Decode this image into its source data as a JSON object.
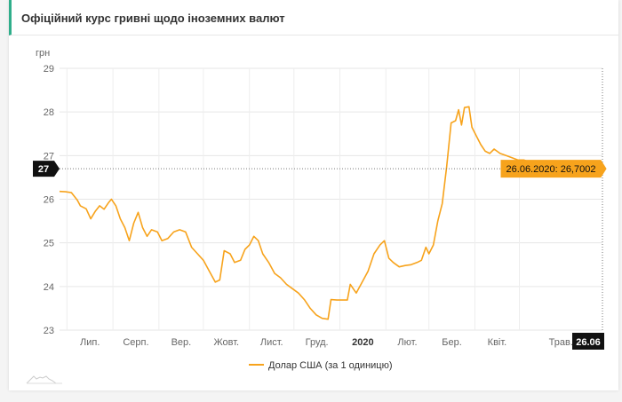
{
  "header": {
    "title": "Офіційний курс гривні щодо іноземних валют"
  },
  "chart_data": {
    "type": "line",
    "ylabel": "грн",
    "ylim": [
      23,
      29
    ],
    "yticks": [
      23,
      24,
      25,
      26,
      27,
      28,
      29
    ],
    "x_range": [
      "2019-06-26",
      "2020-06-26"
    ],
    "x_ticks": [
      {
        "label": "Лип.",
        "date": "2019-07-01",
        "bold": false
      },
      {
        "label": "Серп.",
        "date": "2019-08-01",
        "bold": false
      },
      {
        "label": "Вер.",
        "date": "2019-09-01",
        "bold": false
      },
      {
        "label": "Жовт.",
        "date": "2019-10-01",
        "bold": false
      },
      {
        "label": "Лист.",
        "date": "2019-11-01",
        "bold": false
      },
      {
        "label": "Груд.",
        "date": "2019-12-01",
        "bold": false
      },
      {
        "label": "2020",
        "date": "2020-01-01",
        "bold": true
      },
      {
        "label": "Лют.",
        "date": "2020-02-01",
        "bold": false
      },
      {
        "label": "Бер.",
        "date": "2020-03-01",
        "bold": false
      },
      {
        "label": "Квіт.",
        "date": "2020-04-01",
        "bold": false
      },
      {
        "label": "Трав.",
        "date": "2020-05-01",
        "bold": false
      }
    ],
    "grid": true,
    "legend_position": "bottom",
    "series": [
      {
        "name": "Долар США (за 1 одиницю)",
        "color": "#f7a31c",
        "points": [
          [
            "2019-06-26",
            26.18
          ],
          [
            "2019-06-30",
            26.17
          ],
          [
            "2019-07-04",
            26.15
          ],
          [
            "2019-07-08",
            25.98
          ],
          [
            "2019-07-10",
            25.85
          ],
          [
            "2019-07-14",
            25.78
          ],
          [
            "2019-07-17",
            25.55
          ],
          [
            "2019-07-20",
            25.72
          ],
          [
            "2019-07-23",
            25.85
          ],
          [
            "2019-07-26",
            25.77
          ],
          [
            "2019-07-29",
            25.92
          ],
          [
            "2019-07-31",
            26.0
          ],
          [
            "2019-08-03",
            25.85
          ],
          [
            "2019-08-06",
            25.55
          ],
          [
            "2019-08-09",
            25.35
          ],
          [
            "2019-08-12",
            25.05
          ],
          [
            "2019-08-15",
            25.45
          ],
          [
            "2019-08-18",
            25.7
          ],
          [
            "2019-08-21",
            25.35
          ],
          [
            "2019-08-24",
            25.15
          ],
          [
            "2019-08-27",
            25.3
          ],
          [
            "2019-08-31",
            25.25
          ],
          [
            "2019-09-03",
            25.05
          ],
          [
            "2019-09-07",
            25.1
          ],
          [
            "2019-09-11",
            25.25
          ],
          [
            "2019-09-15",
            25.3
          ],
          [
            "2019-09-19",
            25.25
          ],
          [
            "2019-09-23",
            24.9
          ],
          [
            "2019-09-27",
            24.75
          ],
          [
            "2019-10-01",
            24.6
          ],
          [
            "2019-10-05",
            24.35
          ],
          [
            "2019-10-09",
            24.1
          ],
          [
            "2019-10-12",
            24.15
          ],
          [
            "2019-10-15",
            24.82
          ],
          [
            "2019-10-19",
            24.75
          ],
          [
            "2019-10-22",
            24.55
          ],
          [
            "2019-10-26",
            24.6
          ],
          [
            "2019-10-29",
            24.85
          ],
          [
            "2019-11-01",
            24.95
          ],
          [
            "2019-11-04",
            25.15
          ],
          [
            "2019-11-07",
            25.05
          ],
          [
            "2019-11-10",
            24.75
          ],
          [
            "2019-11-14",
            24.55
          ],
          [
            "2019-11-18",
            24.3
          ],
          [
            "2019-11-22",
            24.2
          ],
          [
            "2019-11-26",
            24.05
          ],
          [
            "2019-11-30",
            23.95
          ],
          [
            "2019-12-04",
            23.85
          ],
          [
            "2019-12-08",
            23.7
          ],
          [
            "2019-12-12",
            23.5
          ],
          [
            "2019-12-16",
            23.35
          ],
          [
            "2019-12-20",
            23.27
          ],
          [
            "2019-12-24",
            23.25
          ],
          [
            "2019-12-26",
            23.7
          ],
          [
            "2019-12-30",
            23.69
          ],
          [
            "2020-01-03",
            23.69
          ],
          [
            "2020-01-06",
            23.69
          ],
          [
            "2020-01-08",
            24.05
          ],
          [
            "2020-01-12",
            23.85
          ],
          [
            "2020-01-16",
            24.1
          ],
          [
            "2020-01-20",
            24.35
          ],
          [
            "2020-01-24",
            24.75
          ],
          [
            "2020-01-28",
            24.95
          ],
          [
            "2020-01-31",
            25.05
          ],
          [
            "2020-02-03",
            24.65
          ],
          [
            "2020-02-06",
            24.55
          ],
          [
            "2020-02-10",
            24.45
          ],
          [
            "2020-02-14",
            24.48
          ],
          [
            "2020-02-18",
            24.5
          ],
          [
            "2020-02-22",
            24.55
          ],
          [
            "2020-02-25",
            24.6
          ],
          [
            "2020-02-28",
            24.9
          ],
          [
            "2020-03-01",
            24.75
          ],
          [
            "2020-03-04",
            24.95
          ],
          [
            "2020-03-07",
            25.5
          ],
          [
            "2020-03-10",
            25.9
          ],
          [
            "2020-03-13",
            26.75
          ],
          [
            "2020-03-16",
            27.75
          ],
          [
            "2020-03-19",
            27.8
          ],
          [
            "2020-03-21",
            28.05
          ],
          [
            "2020-03-23",
            27.7
          ],
          [
            "2020-03-25",
            28.1
          ],
          [
            "2020-03-28",
            28.12
          ],
          [
            "2020-03-30",
            27.65
          ],
          [
            "2020-04-02",
            27.45
          ],
          [
            "2020-04-05",
            27.25
          ],
          [
            "2020-04-08",
            27.1
          ],
          [
            "2020-04-11",
            27.05
          ],
          [
            "2020-04-14",
            27.15
          ],
          [
            "2020-04-18",
            27.05
          ],
          [
            "2020-04-22",
            27.0
          ],
          [
            "2020-04-26",
            26.95
          ],
          [
            "2020-04-30",
            26.9
          ],
          [
            "2020-05-04",
            26.9
          ],
          [
            "2020-05-08",
            26.85
          ],
          [
            "2020-05-12",
            26.85
          ],
          [
            "2020-05-16",
            26.82
          ],
          [
            "2020-05-20",
            26.8
          ],
          [
            "2020-05-24",
            26.78
          ],
          [
            "2020-05-28",
            26.85
          ],
          [
            "2020-06-01",
            26.78
          ],
          [
            "2020-06-05",
            26.72
          ],
          [
            "2020-06-09",
            26.75
          ],
          [
            "2020-06-13",
            26.8
          ],
          [
            "2020-06-17",
            26.72
          ],
          [
            "2020-06-21",
            26.71
          ],
          [
            "2020-06-26",
            26.7002
          ]
        ]
      }
    ],
    "crosshair": {
      "y_label": "27",
      "x_label": "26.06",
      "tooltip": "26.06.2020: 26,7002",
      "value": 26.7002
    }
  }
}
